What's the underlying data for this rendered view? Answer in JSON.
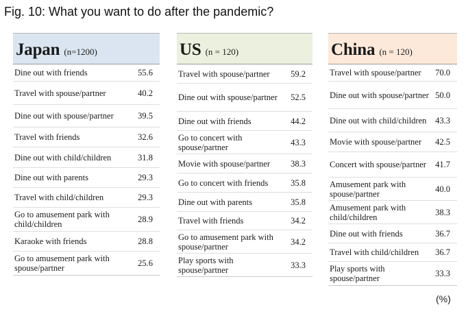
{
  "figure_title": "Fig. 10: What you want to do after the pandemic?",
  "unit_note": "(%)",
  "panels": [
    {
      "country": "Japan",
      "sample": "(n=1200)",
      "rows": [
        {
          "label": "Dine out with friends",
          "value": "55.6"
        },
        {
          "label": "Travel with spouse/partner",
          "value": "40.2"
        },
        {
          "label": "Dine out with spouse/partner",
          "value": "39.5"
        },
        {
          "label": "Travel with friends",
          "value": "32.6"
        },
        {
          "label": "Dine out with child/children",
          "value": "31.8"
        },
        {
          "label": "Dine out with parents",
          "value": "29.3"
        },
        {
          "label": "Travel with child/children",
          "value": "29.3"
        },
        {
          "label": "Go to amusement park with child/children",
          "value": "28.9"
        },
        {
          "label": "Karaoke with friends",
          "value": "28.8"
        },
        {
          "label": "Go to amusement park with spouse/partner",
          "value": "25.6"
        }
      ]
    },
    {
      "country": "US",
      "sample": "(n = 120)",
      "rows": [
        {
          "label": "Travel with spouse/partner",
          "value": "59.2"
        },
        {
          "label": "Dine out with spouse/partner",
          "value": "52.5"
        },
        {
          "label": "Dine out with friends",
          "value": "44.2"
        },
        {
          "label": "Go to concert with spouse/partner",
          "value": "43.3"
        },
        {
          "label": "Movie with spouse/partner",
          "value": "38.3"
        },
        {
          "label": "Go to concert with friends",
          "value": "35.8"
        },
        {
          "label": "Dine out with parents",
          "value": "35.8"
        },
        {
          "label": "Travel with friends",
          "value": "34.2"
        },
        {
          "label": "Go to amusement park with spouse/partner",
          "value": "34.2"
        },
        {
          "label": "Play sports with spouse/partner",
          "value": "33.3"
        }
      ]
    },
    {
      "country": "China",
      "sample": "(n = 120)",
      "rows": [
        {
          "label": "Travel with spouse/partner",
          "value": "70.0"
        },
        {
          "label": "Dine out with spouse/partner",
          "value": "50.0"
        },
        {
          "label": "Dine out with child/children",
          "value": "43.3"
        },
        {
          "label": "Movie with spouse/partner",
          "value": "42.5"
        },
        {
          "label": "Concert with spouse/partner",
          "value": "41.7"
        },
        {
          "label": "Amusement park with spouse/partner",
          "value": "40.0"
        },
        {
          "label": "Amusement park with child/children",
          "value": "38.3"
        },
        {
          "label": "Dine out with friends",
          "value": "36.7"
        },
        {
          "label": "Travel with child/children",
          "value": "36.7"
        },
        {
          "label": "Play sports with spouse/partner",
          "value": "33.3"
        }
      ]
    }
  ]
}
